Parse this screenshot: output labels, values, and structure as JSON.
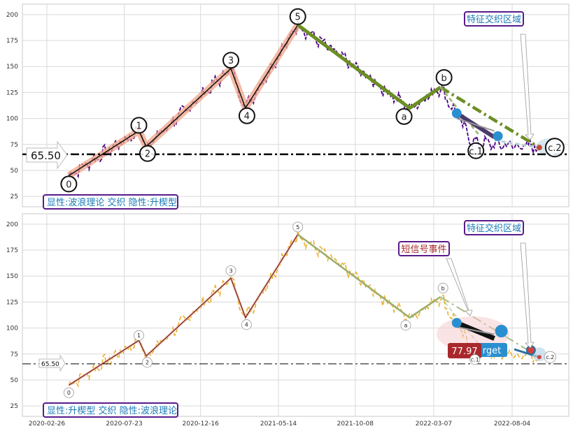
{
  "chart_data": [
    {
      "type": "line",
      "panel": "top",
      "ylim": [
        15,
        210
      ],
      "yticks": [
        25,
        50,
        75,
        100,
        125,
        150,
        175,
        200
      ],
      "legend_box": "显性:波浪理论 交织 隐性:升楔型",
      "region_label": "特征交织区域",
      "price_label": "65.50",
      "hline_value": 65.5,
      "price_series_color": "#4b0082",
      "wave_points": [
        {
          "label": "0",
          "date": "2020-04-08",
          "value": 45
        },
        {
          "label": "1",
          "date": "2020-08-20",
          "value": 88
        },
        {
          "label": "2",
          "date": "2020-09-03",
          "value": 73
        },
        {
          "label": "3",
          "date": "2021-02-12",
          "value": 148
        },
        {
          "label": "4",
          "date": "2021-03-12",
          "value": 110
        },
        {
          "label": "5",
          "date": "2021-06-20",
          "value": 190
        },
        {
          "label": "a",
          "date": "2022-01-20",
          "value": 110
        },
        {
          "label": "b",
          "date": "2022-03-20",
          "value": 130
        },
        {
          "label": "c.1",
          "date": "2022-05-20",
          "value": 77
        },
        {
          "label": "c.2",
          "date": "2022-09-25",
          "value": 72
        }
      ],
      "wave_line_colors": {
        "impulse": "#e8a890",
        "correction": "#6b8e23"
      }
    },
    {
      "type": "line",
      "panel": "bottom",
      "ylim": [
        15,
        210
      ],
      "yticks": [
        25,
        50,
        75,
        100,
        125,
        150,
        175,
        200
      ],
      "legend_box": "显性:升楔型 交织 隐性:波浪理论",
      "region_label": "特征交织区域",
      "event_label": "短信号事件",
      "price_label": "65.50",
      "hline_value": 65.5,
      "target_value_label": "77.97",
      "target_text": "rget",
      "price_series_color": "#e8b030",
      "wave_points": [
        {
          "label": "0",
          "date": "2020-04-08",
          "value": 45
        },
        {
          "label": "1",
          "date": "2020-08-20",
          "value": 88
        },
        {
          "label": "2",
          "date": "2020-09-03",
          "value": 73
        },
        {
          "label": "3",
          "date": "2021-02-12",
          "value": 148
        },
        {
          "label": "4",
          "date": "2021-03-12",
          "value": 110
        },
        {
          "label": "5",
          "date": "2021-06-20",
          "value": 190
        },
        {
          "label": "a",
          "date": "2022-01-20",
          "value": 110
        },
        {
          "label": "b",
          "date": "2022-03-20",
          "value": 130
        },
        {
          "label": "c.1",
          "date": "2022-05-20",
          "value": 77
        },
        {
          "label": "c.2",
          "date": "2022-09-25",
          "value": 72
        }
      ]
    }
  ],
  "x_axis": {
    "ticks": [
      "2020-02-26",
      "2020-07-23",
      "2020-12-16",
      "2021-05-14",
      "2021-10-08",
      "2022-03-07",
      "2022-08-04"
    ]
  }
}
